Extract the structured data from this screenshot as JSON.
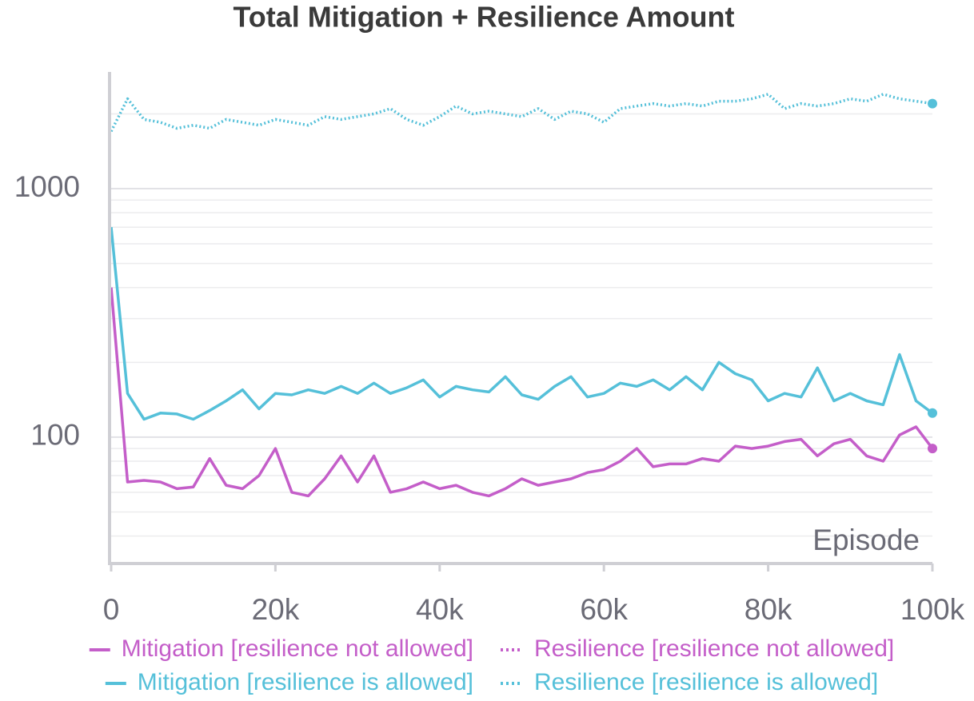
{
  "chart_data": {
    "type": "line",
    "title": "Total Mitigation + Resilience Amount",
    "x_label": "Episode",
    "x": [
      0,
      2000,
      4000,
      6000,
      8000,
      10000,
      12000,
      14000,
      16000,
      18000,
      20000,
      22000,
      24000,
      26000,
      28000,
      30000,
      32000,
      34000,
      36000,
      38000,
      40000,
      42000,
      44000,
      46000,
      48000,
      50000,
      52000,
      54000,
      56000,
      58000,
      60000,
      62000,
      64000,
      66000,
      68000,
      70000,
      72000,
      74000,
      76000,
      78000,
      80000,
      82000,
      84000,
      86000,
      88000,
      90000,
      92000,
      94000,
      96000,
      98000,
      100000
    ],
    "series": [
      {
        "name": "Mitigation [resilience not allowed]",
        "color": "#c45ec9",
        "line_style": "solid",
        "values": [
          400,
          66,
          67,
          66,
          62,
          63,
          82,
          64,
          62,
          70,
          90,
          60,
          58,
          68,
          84,
          66,
          84,
          60,
          62,
          66,
          62,
          64,
          60,
          58,
          62,
          68,
          64,
          66,
          68,
          72,
          74,
          80,
          90,
          76,
          78,
          78,
          82,
          80,
          92,
          90,
          92,
          96,
          98,
          84,
          94,
          98,
          84,
          80,
          102,
          110,
          90
        ]
      },
      {
        "name": "Resilience [resilience not allowed]",
        "color": "#c45ec9",
        "line_style": "dotted",
        "values": [
          null,
          null,
          null,
          null,
          null,
          null,
          null,
          null,
          null,
          null,
          null,
          null,
          null,
          null,
          null,
          null,
          null,
          null,
          null,
          null,
          null,
          null,
          null,
          null,
          null,
          null,
          null,
          null,
          null,
          null,
          null,
          null,
          null,
          null,
          null,
          null,
          null,
          null,
          null,
          null,
          null,
          null,
          null,
          null,
          null,
          null,
          null,
          null,
          null,
          null,
          null
        ]
      },
      {
        "name": "Mitigation [resilience is allowed]",
        "color": "#55c0d9",
        "line_style": "solid",
        "values": [
          700,
          150,
          118,
          125,
          124,
          118,
          128,
          140,
          155,
          130,
          150,
          148,
          155,
          150,
          160,
          150,
          165,
          150,
          158,
          170,
          145,
          160,
          155,
          152,
          175,
          148,
          142,
          160,
          175,
          145,
          150,
          165,
          160,
          170,
          155,
          175,
          155,
          200,
          180,
          170,
          140,
          150,
          145,
          190,
          140,
          150,
          140,
          135,
          215,
          140,
          125
        ]
      },
      {
        "name": "Resilience [resilience is allowed]",
        "color": "#55c0d9",
        "line_style": "dotted",
        "values": [
          1700,
          2300,
          1900,
          1850,
          1750,
          1800,
          1750,
          1900,
          1850,
          1800,
          1900,
          1850,
          1800,
          1950,
          1900,
          1950,
          2000,
          2100,
          1900,
          1800,
          1950,
          2150,
          2000,
          2050,
          2000,
          1950,
          2100,
          1900,
          2050,
          2000,
          1850,
          2100,
          2150,
          2200,
          2150,
          2200,
          2150,
          2250,
          2250,
          2300,
          2400,
          2100,
          2200,
          2150,
          2200,
          2300,
          2250,
          2400,
          2300,
          2250,
          2200
        ]
      }
    ],
    "xlim": [
      0,
      100000
    ],
    "xticks": [
      {
        "value": 0,
        "label": "0"
      },
      {
        "value": 20000,
        "label": "20k"
      },
      {
        "value": 40000,
        "label": "40k"
      },
      {
        "value": 60000,
        "label": "60k"
      },
      {
        "value": 80000,
        "label": "80k"
      },
      {
        "value": 100000,
        "label": "100k"
      }
    ],
    "ylim": [
      31,
      2950
    ],
    "yticks": [
      100,
      1000
    ],
    "log_y": true,
    "grid": true,
    "minor_grid": true,
    "legend": "bottom"
  }
}
